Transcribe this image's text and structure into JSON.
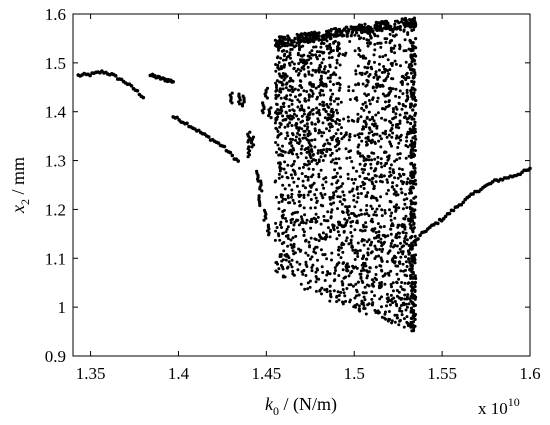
{
  "chart_data": {
    "type": "scatter",
    "title": "",
    "xlabel": {
      "main": "k",
      "sub": "0",
      "unit": " / (N/m)"
    },
    "ylabel": {
      "main": "x",
      "sub": "2",
      "unit": " / mm"
    },
    "x_multiplier": {
      "base": "x 10",
      "exp": "10"
    },
    "xlim": [
      1.34,
      1.6
    ],
    "ylim": [
      0.9,
      1.6
    ],
    "xticks": [
      "1.35",
      "1.4",
      "1.45",
      "1.5",
      "1.55",
      "1.6"
    ],
    "yticks": [
      "0.9",
      "1",
      "1.1",
      "1.2",
      "1.3",
      "1.4",
      "1.5",
      "1.6"
    ],
    "grid": false,
    "marker_color": "#000000",
    "curve_segments": [
      [
        [
          1.343,
          1.474
        ],
        [
          1.35,
          1.476
        ],
        [
          1.357,
          1.482
        ],
        [
          1.362,
          1.476
        ],
        [
          1.37,
          1.46
        ],
        [
          1.376,
          1.443
        ],
        [
          1.38,
          1.43
        ]
      ],
      [
        [
          1.384,
          1.475
        ],
        [
          1.39,
          1.468
        ],
        [
          1.397,
          1.462
        ]
      ],
      [
        [
          1.397,
          1.39
        ],
        [
          1.405,
          1.375
        ],
        [
          1.415,
          1.352
        ],
        [
          1.425,
          1.33
        ],
        [
          1.434,
          1.298
        ]
      ],
      [
        [
          1.533,
          1.128
        ],
        [
          1.54,
          1.155
        ],
        [
          1.55,
          1.18
        ],
        [
          1.56,
          1.21
        ],
        [
          1.57,
          1.238
        ],
        [
          1.58,
          1.258
        ],
        [
          1.59,
          1.268
        ],
        [
          1.6,
          1.282
        ]
      ]
    ],
    "chaotic_region": {
      "x_range": [
        1.455,
        1.535
      ],
      "upper_band_top": [
        [
          1.455,
          1.552
        ],
        [
          1.535,
          1.595
        ]
      ],
      "lower_edge": [
        [
          1.455,
          1.07
        ],
        [
          1.48,
          1.02
        ],
        [
          1.535,
          0.95
        ]
      ],
      "band_split": [
        [
          1.455,
          1.35
        ],
        [
          1.535,
          1.13
        ]
      ],
      "gap_x": [
        1.492,
        1.502
      ]
    },
    "transition_clusters": [
      [
        1.43,
        1.43
      ],
      [
        1.435,
        1.428
      ],
      [
        1.437,
        1.424
      ],
      [
        1.44,
        1.35
      ],
      [
        1.442,
        1.34
      ],
      [
        1.44,
        1.32
      ],
      [
        1.445,
        1.27
      ],
      [
        1.447,
        1.25
      ],
      [
        1.446,
        1.22
      ],
      [
        1.448,
        1.41
      ],
      [
        1.45,
        1.44
      ],
      [
        1.452,
        1.4
      ],
      [
        1.449,
        1.19
      ],
      [
        1.451,
        1.16
      ]
    ]
  }
}
